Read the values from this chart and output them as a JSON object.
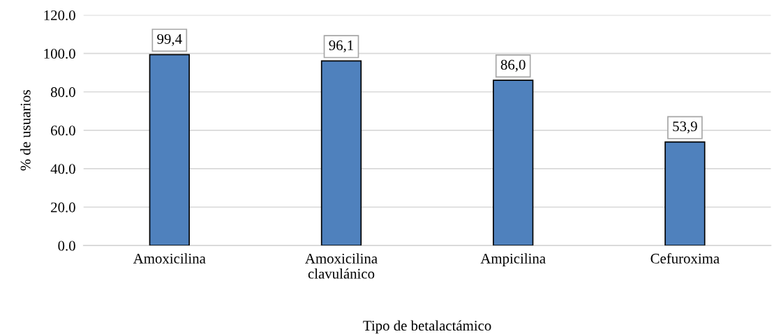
{
  "chart_data": {
    "type": "bar",
    "xlabel": "Tipo de betalactámico",
    "ylabel": "% de usuarios",
    "categories": [
      "Amoxicilina",
      "Amoxicilina\nclavulánico",
      "Ampicilina",
      "Cefuroxima"
    ],
    "values": [
      99.4,
      96.1,
      86.0,
      53.9
    ],
    "value_labels": [
      "99,4",
      "96,1",
      "86,0",
      "53,9"
    ],
    "color": "#4f81bd",
    "ylim": [
      0,
      120
    ],
    "yticks": [
      {
        "value": 0,
        "label": "0.0"
      },
      {
        "value": 20,
        "label": "20.0"
      },
      {
        "value": 40,
        "label": "40.0"
      },
      {
        "value": 60,
        "label": "60.0"
      },
      {
        "value": 80,
        "label": "80.0"
      },
      {
        "value": 100,
        "label": "100.0"
      },
      {
        "value": 120,
        "label": "120.0"
      }
    ],
    "grid": "y"
  }
}
